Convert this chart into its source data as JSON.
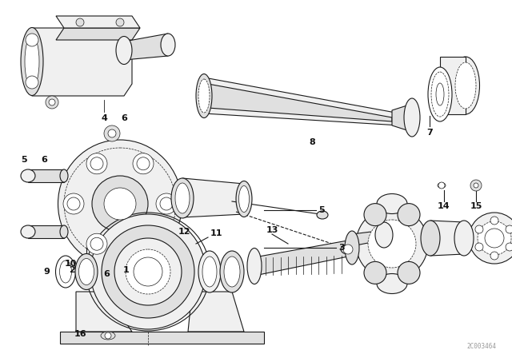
{
  "background_color": "#ffffff",
  "line_color": "#1a1a1a",
  "text_color": "#111111",
  "watermark": "2C003464",
  "lw_main": 0.8,
  "lw_thin": 0.5,
  "lw_thick": 1.2
}
